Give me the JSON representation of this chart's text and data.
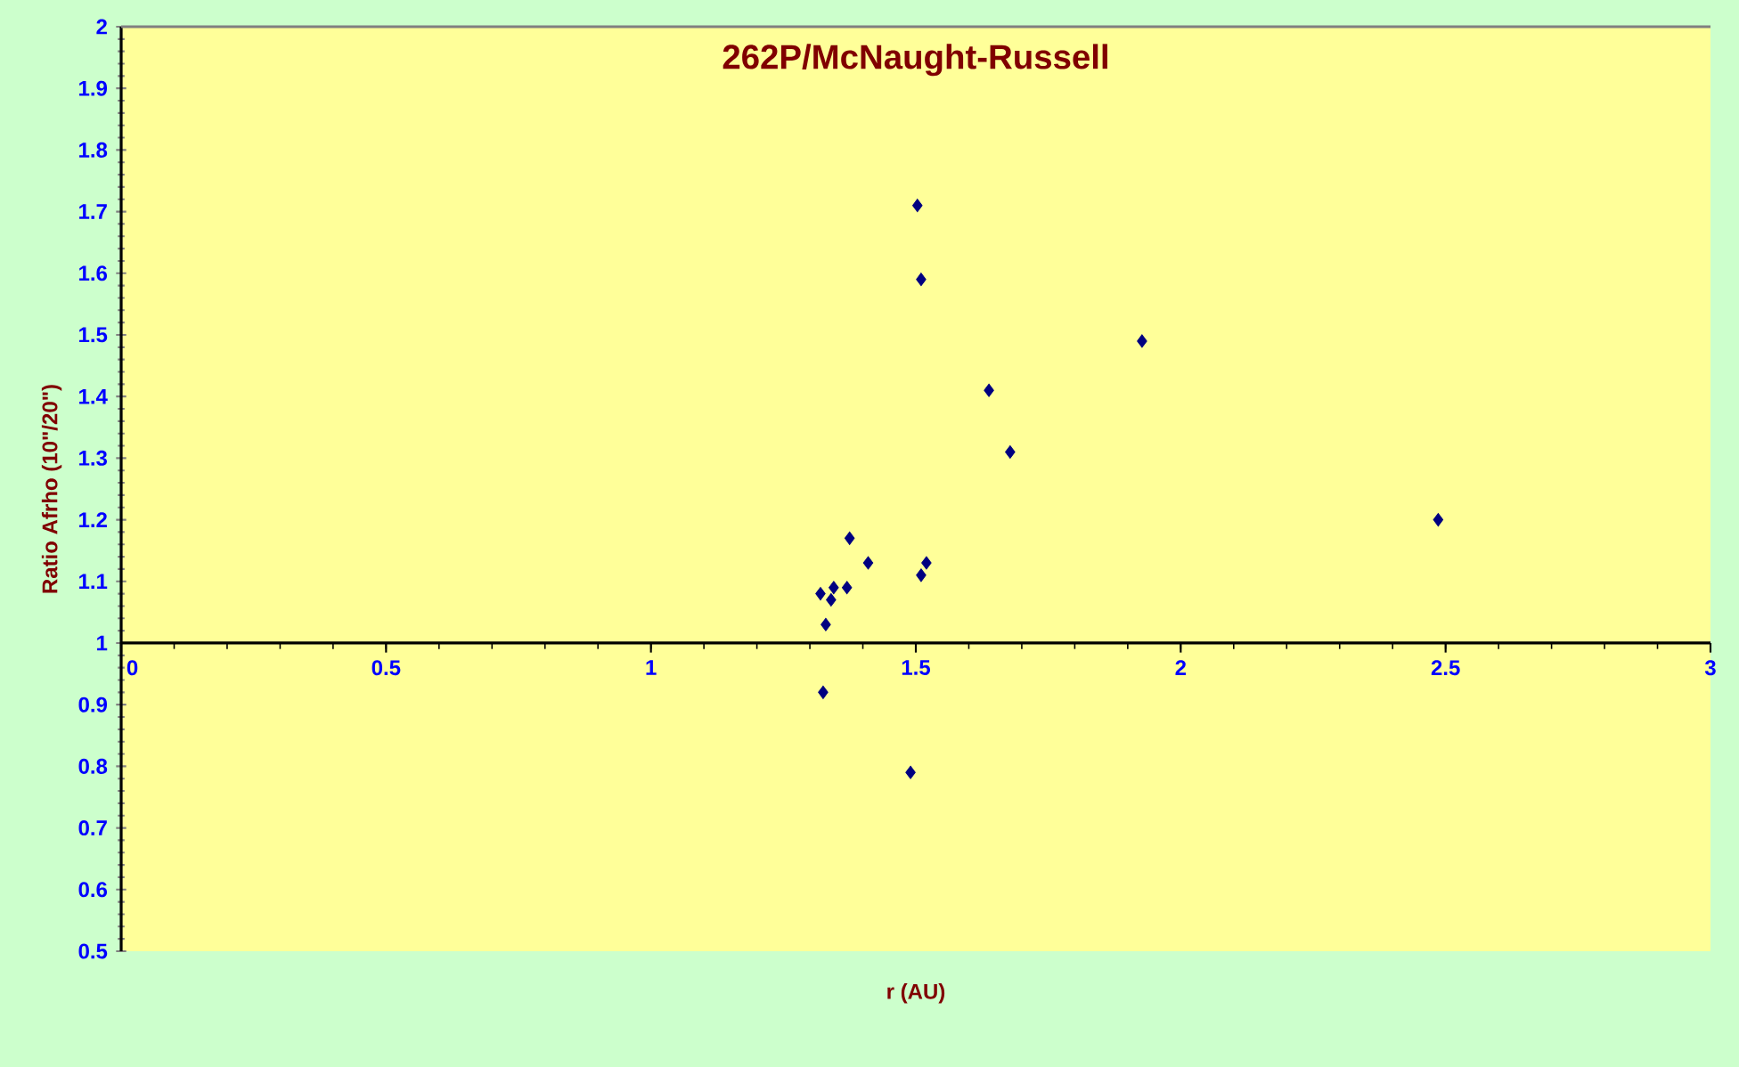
{
  "chart_data": {
    "type": "scatter",
    "title": "262P/McNaught-Russell",
    "xlabel": "r (AU)",
    "ylabel": "Ratio Afrho (10\"/20\")",
    "x": [
      1.503,
      1.51,
      1.927,
      1.638,
      1.678,
      2.486,
      1.375,
      1.41,
      1.52,
      1.51,
      1.37,
      1.345,
      1.32,
      1.34,
      1.33,
      1.325,
      1.49
    ],
    "values": [
      1.71,
      1.59,
      1.49,
      1.41,
      1.31,
      1.2,
      1.17,
      1.13,
      1.13,
      1.11,
      1.09,
      1.09,
      1.08,
      1.07,
      1.03,
      0.92,
      0.79
    ],
    "color": "#000080",
    "marker": "diamond",
    "grid": false,
    "xlim": [
      0,
      3
    ],
    "xticks": [
      0,
      0.5,
      1,
      1.5,
      2,
      2.5,
      3
    ],
    "ylim": [
      0.5,
      2
    ],
    "yticks": [
      0.5,
      0.6,
      0.7,
      0.8,
      0.9,
      1,
      1.1,
      1.2,
      1.3,
      1.4,
      1.5,
      1.6,
      1.7,
      1.8,
      1.9,
      2
    ]
  }
}
